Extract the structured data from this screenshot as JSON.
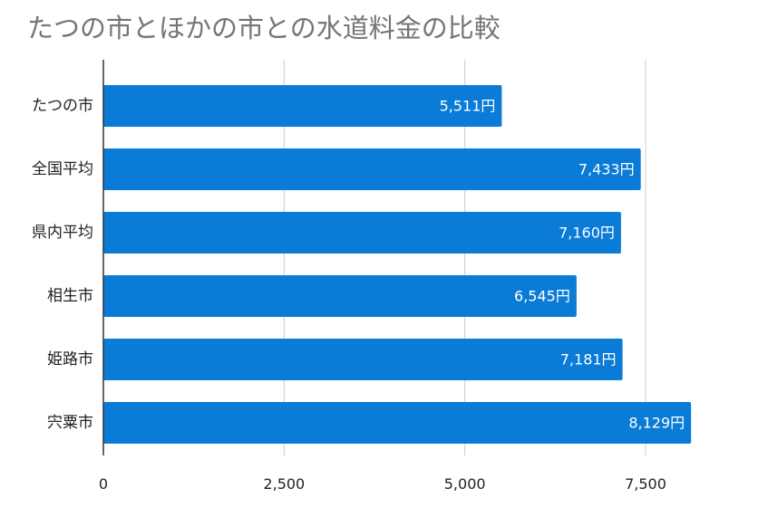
{
  "chart_data": {
    "type": "bar",
    "orientation": "horizontal",
    "title": "たつの市とほかの市との水道料金の比較",
    "categories": [
      "たつの市",
      "全国平均",
      "県内平均",
      "相生市",
      "姫路市",
      "宍粟市"
    ],
    "values": [
      5511,
      7433,
      7160,
      6545,
      7181,
      8129
    ],
    "data_labels": [
      "5,511円",
      "7,433円",
      "7,160円",
      "6,545円",
      "7,181円",
      "8,129円"
    ],
    "xlabel": "",
    "ylabel": "",
    "xlim": [
      0,
      8500
    ],
    "x_ticks": [
      0,
      2500,
      5000,
      7500
    ],
    "x_tick_labels": [
      "0",
      "2,500",
      "5,000",
      "7,500"
    ],
    "grid": true,
    "legend": "none",
    "bar_color": "#0A7BD7",
    "grid_color": "#CCCCCC",
    "title_color": "#757575"
  }
}
